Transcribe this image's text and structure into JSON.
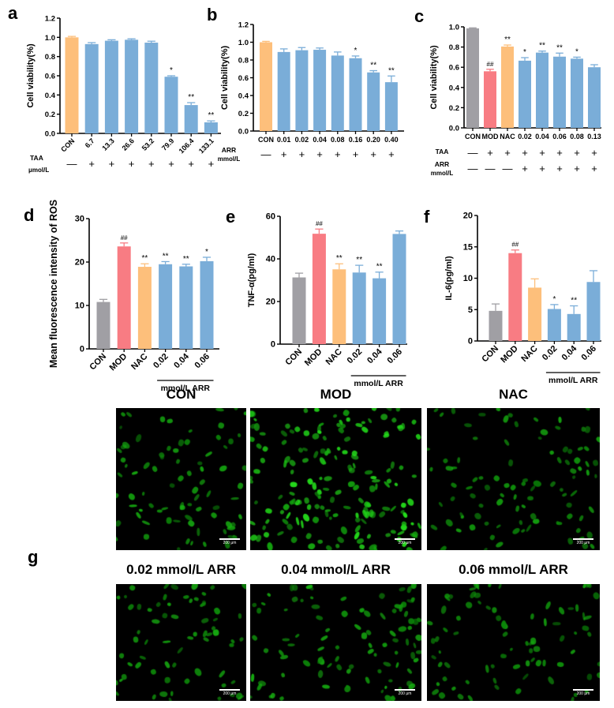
{
  "colors": {
    "con_orange": "#FDBF7B",
    "treat_blue": "#7AADD8",
    "con_gray": "#A09FA4",
    "mod_red": "#F87C83"
  },
  "panel_letters": [
    "a",
    "b",
    "c",
    "d",
    "e",
    "f",
    "g"
  ],
  "chart_data": [
    {
      "id": "a",
      "type": "bar",
      "ylabel": "Cell viability(%)",
      "ylim": [
        0,
        1.2
      ],
      "yticks": [
        "0.0",
        "0.2",
        "0.4",
        "0.6",
        "0.8",
        "1.0",
        "1.2"
      ],
      "categories": [
        "CON",
        "6.7",
        "13.3",
        "26.6",
        "53.2",
        "79.9",
        "106.4",
        "133.1"
      ],
      "values": [
        1.0,
        0.93,
        0.965,
        0.975,
        0.945,
        0.59,
        0.295,
        0.115
      ],
      "errors": [
        0.01,
        0.015,
        0.01,
        0.01,
        0.015,
        0.01,
        0.025,
        0.015
      ],
      "significance": [
        "",
        "",
        "",
        "",
        "",
        "*",
        "**",
        "**"
      ],
      "bar_colors": [
        "orange",
        "blue",
        "blue",
        "blue",
        "blue",
        "blue",
        "blue",
        "blue"
      ],
      "rows": [
        {
          "label": "TAA",
          "sub": "μmol/L",
          "marks": [
            "—",
            "+",
            "+",
            "+",
            "+",
            "+",
            "+",
            "+"
          ]
        }
      ]
    },
    {
      "id": "b",
      "type": "bar",
      "ylabel": "Cell viability(%)",
      "ylim": [
        0,
        1.2
      ],
      "yticks": [
        "0.0",
        "0.2",
        "0.4",
        "0.6",
        "0.8",
        "1.0",
        "1.2"
      ],
      "categories": [
        "CON",
        "0.01",
        "0.02",
        "0.04",
        "0.08",
        "0.16",
        "0.20",
        "0.40"
      ],
      "values": [
        1.0,
        0.89,
        0.91,
        0.915,
        0.85,
        0.82,
        0.66,
        0.55
      ],
      "errors": [
        0.01,
        0.035,
        0.03,
        0.02,
        0.04,
        0.025,
        0.02,
        0.07
      ],
      "significance": [
        "",
        "",
        "",
        "",
        "",
        "*",
        "**",
        "**"
      ],
      "bar_colors": [
        "orange",
        "blue",
        "blue",
        "blue",
        "blue",
        "blue",
        "blue",
        "blue"
      ],
      "rows": [
        {
          "label": "ARR",
          "sub": "mmol/L",
          "marks": [
            "—",
            "+",
            "+",
            "+",
            "+",
            "+",
            "+",
            "+"
          ]
        }
      ]
    },
    {
      "id": "c",
      "type": "bar",
      "ylabel": "Cell viability(%)",
      "ylim": [
        0,
        1.0
      ],
      "yticks": [
        "0.0",
        "0.2",
        "0.4",
        "0.6",
        "0.8",
        "1.0"
      ],
      "categories": [
        "CON",
        "MOD",
        "NAC",
        "0.02",
        "0.04",
        "0.06",
        "0.08",
        "0.13"
      ],
      "values": [
        0.985,
        0.56,
        0.805,
        0.665,
        0.745,
        0.705,
        0.685,
        0.6
      ],
      "errors": [
        0.005,
        0.02,
        0.015,
        0.03,
        0.015,
        0.035,
        0.015,
        0.025
      ],
      "significance": [
        "",
        "##",
        "**",
        "*",
        "**",
        "**",
        "*",
        ""
      ],
      "bar_colors": [
        "gray",
        "red",
        "orange",
        "blue",
        "blue",
        "blue",
        "blue",
        "blue"
      ],
      "rows": [
        {
          "label": "TAA",
          "sub": "",
          "marks": [
            "—",
            "+",
            "+",
            "+",
            "+",
            "+",
            "+",
            "+"
          ]
        },
        {
          "label": "ARR",
          "sub": "mmol/L",
          "marks": [
            "—",
            "—",
            "—",
            "+",
            "+",
            "+",
            "+",
            "+"
          ]
        }
      ]
    },
    {
      "id": "d",
      "type": "bar",
      "ylabel": "Mean fluorescence intensity of ROS",
      "ylim": [
        0,
        30
      ],
      "yticks": [
        "0",
        "10",
        "20",
        "30"
      ],
      "categories": [
        "CON",
        "MOD",
        "NAC",
        "0.02",
        "0.04",
        "0.06"
      ],
      "values": [
        10.8,
        23.6,
        18.9,
        19.5,
        19.0,
        20.2
      ],
      "errors": [
        0.6,
        0.8,
        0.7,
        0.6,
        0.5,
        0.9
      ],
      "significance": [
        "",
        "##",
        "**",
        "**",
        "**",
        "*"
      ],
      "bar_colors": [
        "gray",
        "red",
        "orange",
        "blue",
        "blue",
        "blue"
      ],
      "group_label": "mmol/L ARR"
    },
    {
      "id": "e",
      "type": "bar",
      "ylabel": "TNF-α(pg/ml)",
      "ylim": [
        0,
        60
      ],
      "yticks": [
        "0",
        "20",
        "40",
        "60"
      ],
      "categories": [
        "CON",
        "MOD",
        "NAC",
        "0.02",
        "0.04",
        "0.06"
      ],
      "values": [
        31.3,
        51.8,
        35.1,
        33.6,
        30.9,
        51.7
      ],
      "errors": [
        2.0,
        2.2,
        2.6,
        3.4,
        2.9,
        1.4
      ],
      "significance": [
        "",
        "##",
        "**",
        "**",
        "**",
        ""
      ],
      "bar_colors": [
        "gray",
        "red",
        "orange",
        "blue",
        "blue",
        "blue"
      ],
      "group_label": "mmol/L ARR"
    },
    {
      "id": "f",
      "type": "bar",
      "ylabel": "IL-6(pg/ml)",
      "ylim": [
        0,
        20
      ],
      "yticks": [
        "0",
        "5",
        "10",
        "15",
        "20"
      ],
      "categories": [
        "CON",
        "MOD",
        "NAC",
        "0.02",
        "0.04",
        "0.06"
      ],
      "values": [
        4.8,
        14.0,
        8.5,
        5.1,
        4.3,
        9.4
      ],
      "errors": [
        1.1,
        0.5,
        1.4,
        0.7,
        1.3,
        1.8
      ],
      "significance": [
        "",
        "##",
        "",
        "*",
        "**",
        ""
      ],
      "bar_colors": [
        "gray",
        "red",
        "orange",
        "blue",
        "blue",
        "blue"
      ],
      "group_label": "mmol/L ARR"
    }
  ],
  "micrographs": {
    "scale_bar": "200 μm",
    "images": [
      {
        "label": "CON",
        "density": 0.6
      },
      {
        "label": "MOD",
        "density": 1.0
      },
      {
        "label": "NAC",
        "density": 0.55
      },
      {
        "label": "0.02 mmol/L ARR",
        "density": 0.6
      },
      {
        "label": "0.04 mmol/L ARR",
        "density": 0.65
      },
      {
        "label": "0.06 mmol/L ARR",
        "density": 0.55
      }
    ]
  }
}
